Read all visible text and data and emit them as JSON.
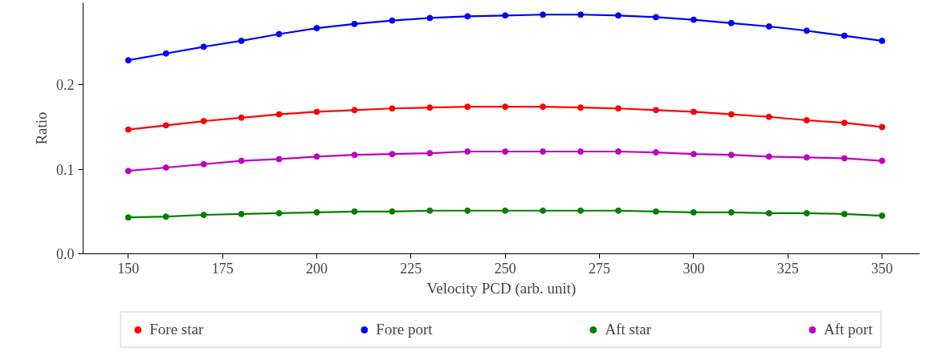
{
  "chart_data": {
    "type": "line",
    "xlabel": "Velocity PCD (arb. unit)",
    "ylabel": "Ratio",
    "x": [
      150,
      160,
      170,
      180,
      190,
      200,
      210,
      220,
      230,
      240,
      250,
      260,
      270,
      280,
      290,
      300,
      310,
      320,
      330,
      340,
      350
    ],
    "xlim": [
      138,
      360
    ],
    "xticks": [
      150,
      175,
      200,
      225,
      250,
      275,
      300,
      325,
      350
    ],
    "ylim": [
      0,
      0.297
    ],
    "yticks": [
      {
        "value": 0,
        "label": "0.0"
      },
      {
        "value": 0.1,
        "label": "0.1"
      },
      {
        "value": 0.2,
        "label": "0.2"
      }
    ],
    "grid": false,
    "legend": "bottom",
    "marker": "circle",
    "line_style": "solid",
    "series": [
      {
        "name": "Fore star",
        "color": "#ff0000",
        "values": [
          0.147,
          0.152,
          0.157,
          0.161,
          0.165,
          0.168,
          0.17,
          0.172,
          0.173,
          0.174,
          0.174,
          0.174,
          0.173,
          0.172,
          0.17,
          0.168,
          0.165,
          0.162,
          0.158,
          0.155,
          0.15
        ]
      },
      {
        "name": "Fore port",
        "color": "#0000ff",
        "values": [
          0.229,
          0.237,
          0.245,
          0.252,
          0.26,
          0.267,
          0.272,
          0.276,
          0.279,
          0.281,
          0.282,
          0.283,
          0.283,
          0.282,
          0.28,
          0.277,
          0.273,
          0.269,
          0.264,
          0.258,
          0.252
        ]
      },
      {
        "name": "Aft star",
        "color": "#008000",
        "values": [
          0.043,
          0.044,
          0.046,
          0.047,
          0.048,
          0.049,
          0.05,
          0.05,
          0.051,
          0.051,
          0.051,
          0.051,
          0.051,
          0.051,
          0.05,
          0.049,
          0.049,
          0.048,
          0.048,
          0.047,
          0.045
        ]
      },
      {
        "name": "Aft port",
        "color": "#bf00bf",
        "values": [
          0.098,
          0.102,
          0.106,
          0.11,
          0.112,
          0.115,
          0.117,
          0.118,
          0.119,
          0.121,
          0.121,
          0.121,
          0.121,
          0.121,
          0.12,
          0.118,
          0.117,
          0.115,
          0.114,
          0.113,
          0.11
        ]
      }
    ]
  }
}
